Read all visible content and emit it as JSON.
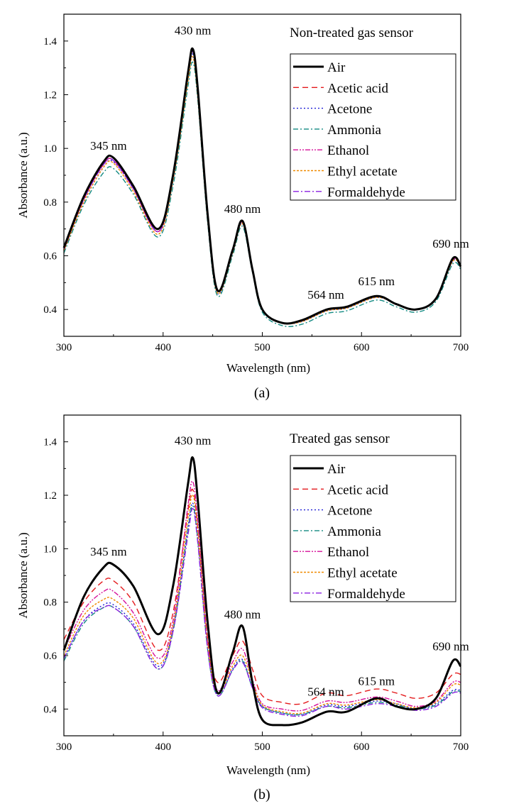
{
  "chart_data": [
    {
      "id": "a",
      "type": "line",
      "title": "Non-treated gas sensor",
      "caption": "(a)",
      "xlabel": "Wavelength (nm)",
      "ylabel": "Absorbance (a.u.)",
      "xlim": [
        300,
        700
      ],
      "ylim": [
        0.3,
        1.5
      ],
      "xticks": [
        300,
        400,
        500,
        600,
        700
      ],
      "yticks": [
        0.4,
        0.6,
        0.8,
        1.0,
        1.2,
        1.4
      ],
      "x": [
        300,
        320,
        340,
        350,
        370,
        395,
        410,
        425,
        430,
        435,
        445,
        455,
        470,
        480,
        490,
        500,
        520,
        540,
        565,
        585,
        615,
        635,
        655,
        675,
        692,
        700
      ],
      "annotations": [
        {
          "text": "345 nm",
          "x": 345,
          "y": 0.995
        },
        {
          "text": "430 nm",
          "x": 430,
          "y": 1.425
        },
        {
          "text": "480 nm",
          "x": 480,
          "y": 0.76
        },
        {
          "text": "564 nm",
          "x": 564,
          "y": 0.44
        },
        {
          "text": "615 nm",
          "x": 615,
          "y": 0.49
        },
        {
          "text": "690 nm",
          "x": 690,
          "y": 0.63
        }
      ],
      "series": [
        {
          "name": "Air",
          "color": "#000000",
          "dash": "",
          "width": 3,
          "values": [
            0.63,
            0.82,
            0.95,
            0.965,
            0.86,
            0.7,
            0.9,
            1.28,
            1.37,
            1.22,
            0.75,
            0.47,
            0.62,
            0.73,
            0.55,
            0.4,
            0.35,
            0.36,
            0.4,
            0.41,
            0.45,
            0.42,
            0.4,
            0.44,
            0.59,
            0.56
          ]
        },
        {
          "name": "Acetic acid",
          "color": "#e41a1c",
          "dash": "8,5",
          "width": 1.4,
          "values": [
            0.62,
            0.81,
            0.94,
            0.955,
            0.85,
            0.69,
            0.89,
            1.27,
            1.36,
            1.21,
            0.74,
            0.47,
            0.62,
            0.725,
            0.55,
            0.4,
            0.35,
            0.36,
            0.4,
            0.41,
            0.45,
            0.42,
            0.4,
            0.44,
            0.585,
            0.56
          ]
        },
        {
          "name": "Acetone",
          "color": "#1f1fd6",
          "dash": "2,3",
          "width": 1.4,
          "values": [
            0.62,
            0.8,
            0.93,
            0.95,
            0.85,
            0.69,
            0.88,
            1.26,
            1.35,
            1.2,
            0.74,
            0.46,
            0.61,
            0.72,
            0.55,
            0.4,
            0.35,
            0.355,
            0.395,
            0.405,
            0.445,
            0.42,
            0.4,
            0.44,
            0.58,
            0.56
          ]
        },
        {
          "name": "Ammonia",
          "color": "#138a82",
          "dash": "7,3,2,3",
          "width": 1.4,
          "values": [
            0.61,
            0.79,
            0.91,
            0.925,
            0.83,
            0.67,
            0.86,
            1.23,
            1.32,
            1.18,
            0.72,
            0.45,
            0.6,
            0.71,
            0.54,
            0.39,
            0.34,
            0.345,
            0.385,
            0.395,
            0.435,
            0.41,
            0.39,
            0.43,
            0.57,
            0.55
          ]
        },
        {
          "name": "Ethanol",
          "color": "#d6119a",
          "dash": "7,2,2,2,2,2",
          "width": 1.4,
          "values": [
            0.62,
            0.81,
            0.94,
            0.955,
            0.85,
            0.69,
            0.89,
            1.27,
            1.36,
            1.21,
            0.74,
            0.47,
            0.62,
            0.725,
            0.55,
            0.4,
            0.35,
            0.36,
            0.4,
            0.41,
            0.45,
            0.42,
            0.4,
            0.44,
            0.585,
            0.56
          ]
        },
        {
          "name": "Ethyl acetate",
          "color": "#f08a00",
          "dash": "3,2",
          "width": 1.4,
          "values": [
            0.62,
            0.8,
            0.93,
            0.945,
            0.84,
            0.68,
            0.88,
            1.25,
            1.34,
            1.19,
            0.73,
            0.46,
            0.61,
            0.72,
            0.55,
            0.4,
            0.35,
            0.355,
            0.395,
            0.405,
            0.445,
            0.42,
            0.4,
            0.44,
            0.58,
            0.56
          ]
        },
        {
          "name": "Formaldehyde",
          "color": "#8a1fe0",
          "dash": "8,3,2,3",
          "width": 1.4,
          "values": [
            0.63,
            0.81,
            0.94,
            0.955,
            0.85,
            0.69,
            0.89,
            1.27,
            1.36,
            1.21,
            0.74,
            0.47,
            0.62,
            0.73,
            0.55,
            0.4,
            0.35,
            0.36,
            0.4,
            0.41,
            0.45,
            0.42,
            0.4,
            0.44,
            0.59,
            0.56
          ]
        }
      ]
    },
    {
      "id": "b",
      "type": "line",
      "title": "Treated gas sensor",
      "caption": "(b)",
      "xlabel": "Wavelength (nm)",
      "ylabel": "Absorbance (a.u.)",
      "xlim": [
        300,
        700
      ],
      "ylim": [
        0.3,
        1.5
      ],
      "xticks": [
        300,
        400,
        500,
        600,
        700
      ],
      "yticks": [
        0.4,
        0.6,
        0.8,
        1.0,
        1.2,
        1.4
      ],
      "x": [
        300,
        320,
        340,
        350,
        370,
        395,
        410,
        425,
        430,
        435,
        445,
        455,
        470,
        480,
        490,
        500,
        520,
        540,
        565,
        585,
        615,
        635,
        655,
        675,
        692,
        700
      ],
      "annotations": [
        {
          "text": "345 nm",
          "x": 345,
          "y": 0.975
        },
        {
          "text": "430 nm",
          "x": 430,
          "y": 1.39
        },
        {
          "text": "480 nm",
          "x": 480,
          "y": 0.74
        },
        {
          "text": "564 nm",
          "x": 564,
          "y": 0.45
        },
        {
          "text": "615 nm",
          "x": 615,
          "y": 0.49
        },
        {
          "text": "690 nm",
          "x": 690,
          "y": 0.62
        }
      ],
      "series": [
        {
          "name": "Air",
          "color": "#000000",
          "dash": "",
          "width": 3,
          "values": [
            0.62,
            0.82,
            0.93,
            0.94,
            0.86,
            0.68,
            0.86,
            1.24,
            1.34,
            1.18,
            0.72,
            0.46,
            0.61,
            0.71,
            0.5,
            0.36,
            0.34,
            0.35,
            0.39,
            0.39,
            0.44,
            0.41,
            0.4,
            0.44,
            0.58,
            0.56
          ]
        },
        {
          "name": "Acetic acid",
          "color": "#e41a1c",
          "dash": "8,5",
          "width": 1.4,
          "values": [
            0.66,
            0.8,
            0.88,
            0.88,
            0.8,
            0.62,
            0.76,
            1.14,
            1.22,
            1.08,
            0.66,
            0.5,
            0.6,
            0.655,
            0.55,
            0.45,
            0.425,
            0.42,
            0.46,
            0.45,
            0.475,
            0.46,
            0.44,
            0.46,
            0.53,
            0.53
          ]
        },
        {
          "name": "Acetone",
          "color": "#1f1fd6",
          "dash": "2,3",
          "width": 1.4,
          "values": [
            0.59,
            0.73,
            0.79,
            0.79,
            0.72,
            0.56,
            0.7,
            1.08,
            1.17,
            1.04,
            0.63,
            0.45,
            0.55,
            0.585,
            0.48,
            0.41,
            0.385,
            0.38,
            0.415,
            0.41,
            0.43,
            0.42,
            0.4,
            0.42,
            0.47,
            0.47
          ]
        },
        {
          "name": "Ammonia",
          "color": "#138a82",
          "dash": "7,3,2,3",
          "width": 1.4,
          "values": [
            0.58,
            0.72,
            0.78,
            0.78,
            0.71,
            0.55,
            0.69,
            1.07,
            1.16,
            1.03,
            0.62,
            0.45,
            0.545,
            0.58,
            0.48,
            0.41,
            0.385,
            0.38,
            0.41,
            0.405,
            0.425,
            0.415,
            0.4,
            0.415,
            0.465,
            0.465
          ]
        },
        {
          "name": "Ethanol",
          "color": "#d6119a",
          "dash": "7,2,2,2,2,2",
          "width": 1.4,
          "values": [
            0.62,
            0.77,
            0.84,
            0.84,
            0.76,
            0.59,
            0.73,
            1.16,
            1.25,
            1.1,
            0.65,
            0.47,
            0.575,
            0.625,
            0.51,
            0.42,
            0.4,
            0.395,
            0.43,
            0.425,
            0.445,
            0.43,
            0.41,
            0.43,
            0.5,
            0.5
          ]
        },
        {
          "name": "Ethyl acetate",
          "color": "#f08a00",
          "dash": "3,2",
          "width": 1.4,
          "values": [
            0.6,
            0.75,
            0.81,
            0.81,
            0.74,
            0.57,
            0.71,
            1.11,
            1.2,
            1.06,
            0.64,
            0.46,
            0.56,
            0.6,
            0.5,
            0.415,
            0.39,
            0.385,
            0.42,
            0.415,
            0.435,
            0.42,
            0.405,
            0.425,
            0.49,
            0.49
          ]
        },
        {
          "name": "Formaldehyde",
          "color": "#8a1fe0",
          "dash": "8,3,2,3",
          "width": 1.4,
          "values": [
            0.59,
            0.73,
            0.78,
            0.78,
            0.71,
            0.55,
            0.69,
            1.05,
            1.15,
            1.02,
            0.62,
            0.45,
            0.545,
            0.575,
            0.48,
            0.405,
            0.38,
            0.375,
            0.41,
            0.4,
            0.42,
            0.41,
            0.395,
            0.41,
            0.46,
            0.46
          ]
        }
      ]
    }
  ]
}
